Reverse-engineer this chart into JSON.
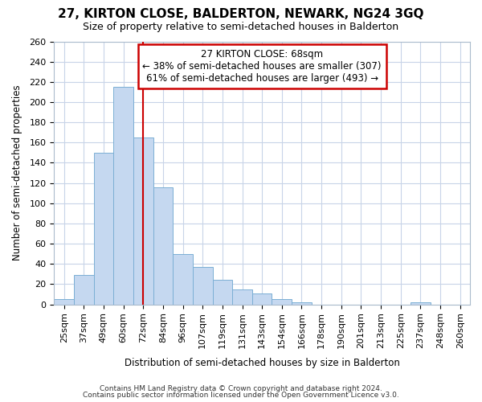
{
  "title": "27, KIRTON CLOSE, BALDERTON, NEWARK, NG24 3GQ",
  "subtitle": "Size of property relative to semi-detached houses in Balderton",
  "xlabel": "Distribution of semi-detached houses by size in Balderton",
  "ylabel": "Number of semi-detached properties",
  "bar_labels": [
    "25sqm",
    "37sqm",
    "49sqm",
    "60sqm",
    "72sqm",
    "84sqm",
    "96sqm",
    "107sqm",
    "119sqm",
    "131sqm",
    "143sqm",
    "154sqm",
    "166sqm",
    "178sqm",
    "190sqm",
    "201sqm",
    "213sqm",
    "225sqm",
    "237sqm",
    "248sqm",
    "260sqm"
  ],
  "bar_values": [
    5,
    29,
    150,
    215,
    165,
    116,
    50,
    37,
    24,
    15,
    11,
    5,
    2,
    0,
    0,
    0,
    0,
    0,
    2,
    0,
    0
  ],
  "bar_color": "#c5d8f0",
  "bar_edge_color": "#7bafd4",
  "grid_color": "#c8d4e8",
  "bg_color": "#ffffff",
  "fig_bg_color": "#ffffff",
  "annotation_text": "27 KIRTON CLOSE: 68sqm\n← 38% of semi-detached houses are smaller (307)\n61% of semi-detached houses are larger (493) →",
  "annotation_box_color": "#ffffff",
  "annotation_box_edge_color": "#cc0000",
  "red_line_index": 4,
  "ylim": [
    0,
    260
  ],
  "yticks": [
    0,
    20,
    40,
    60,
    80,
    100,
    120,
    140,
    160,
    180,
    200,
    220,
    240,
    260
  ],
  "footer1": "Contains HM Land Registry data © Crown copyright and database right 2024.",
  "footer2": "Contains public sector information licensed under the Open Government Licence v3.0."
}
